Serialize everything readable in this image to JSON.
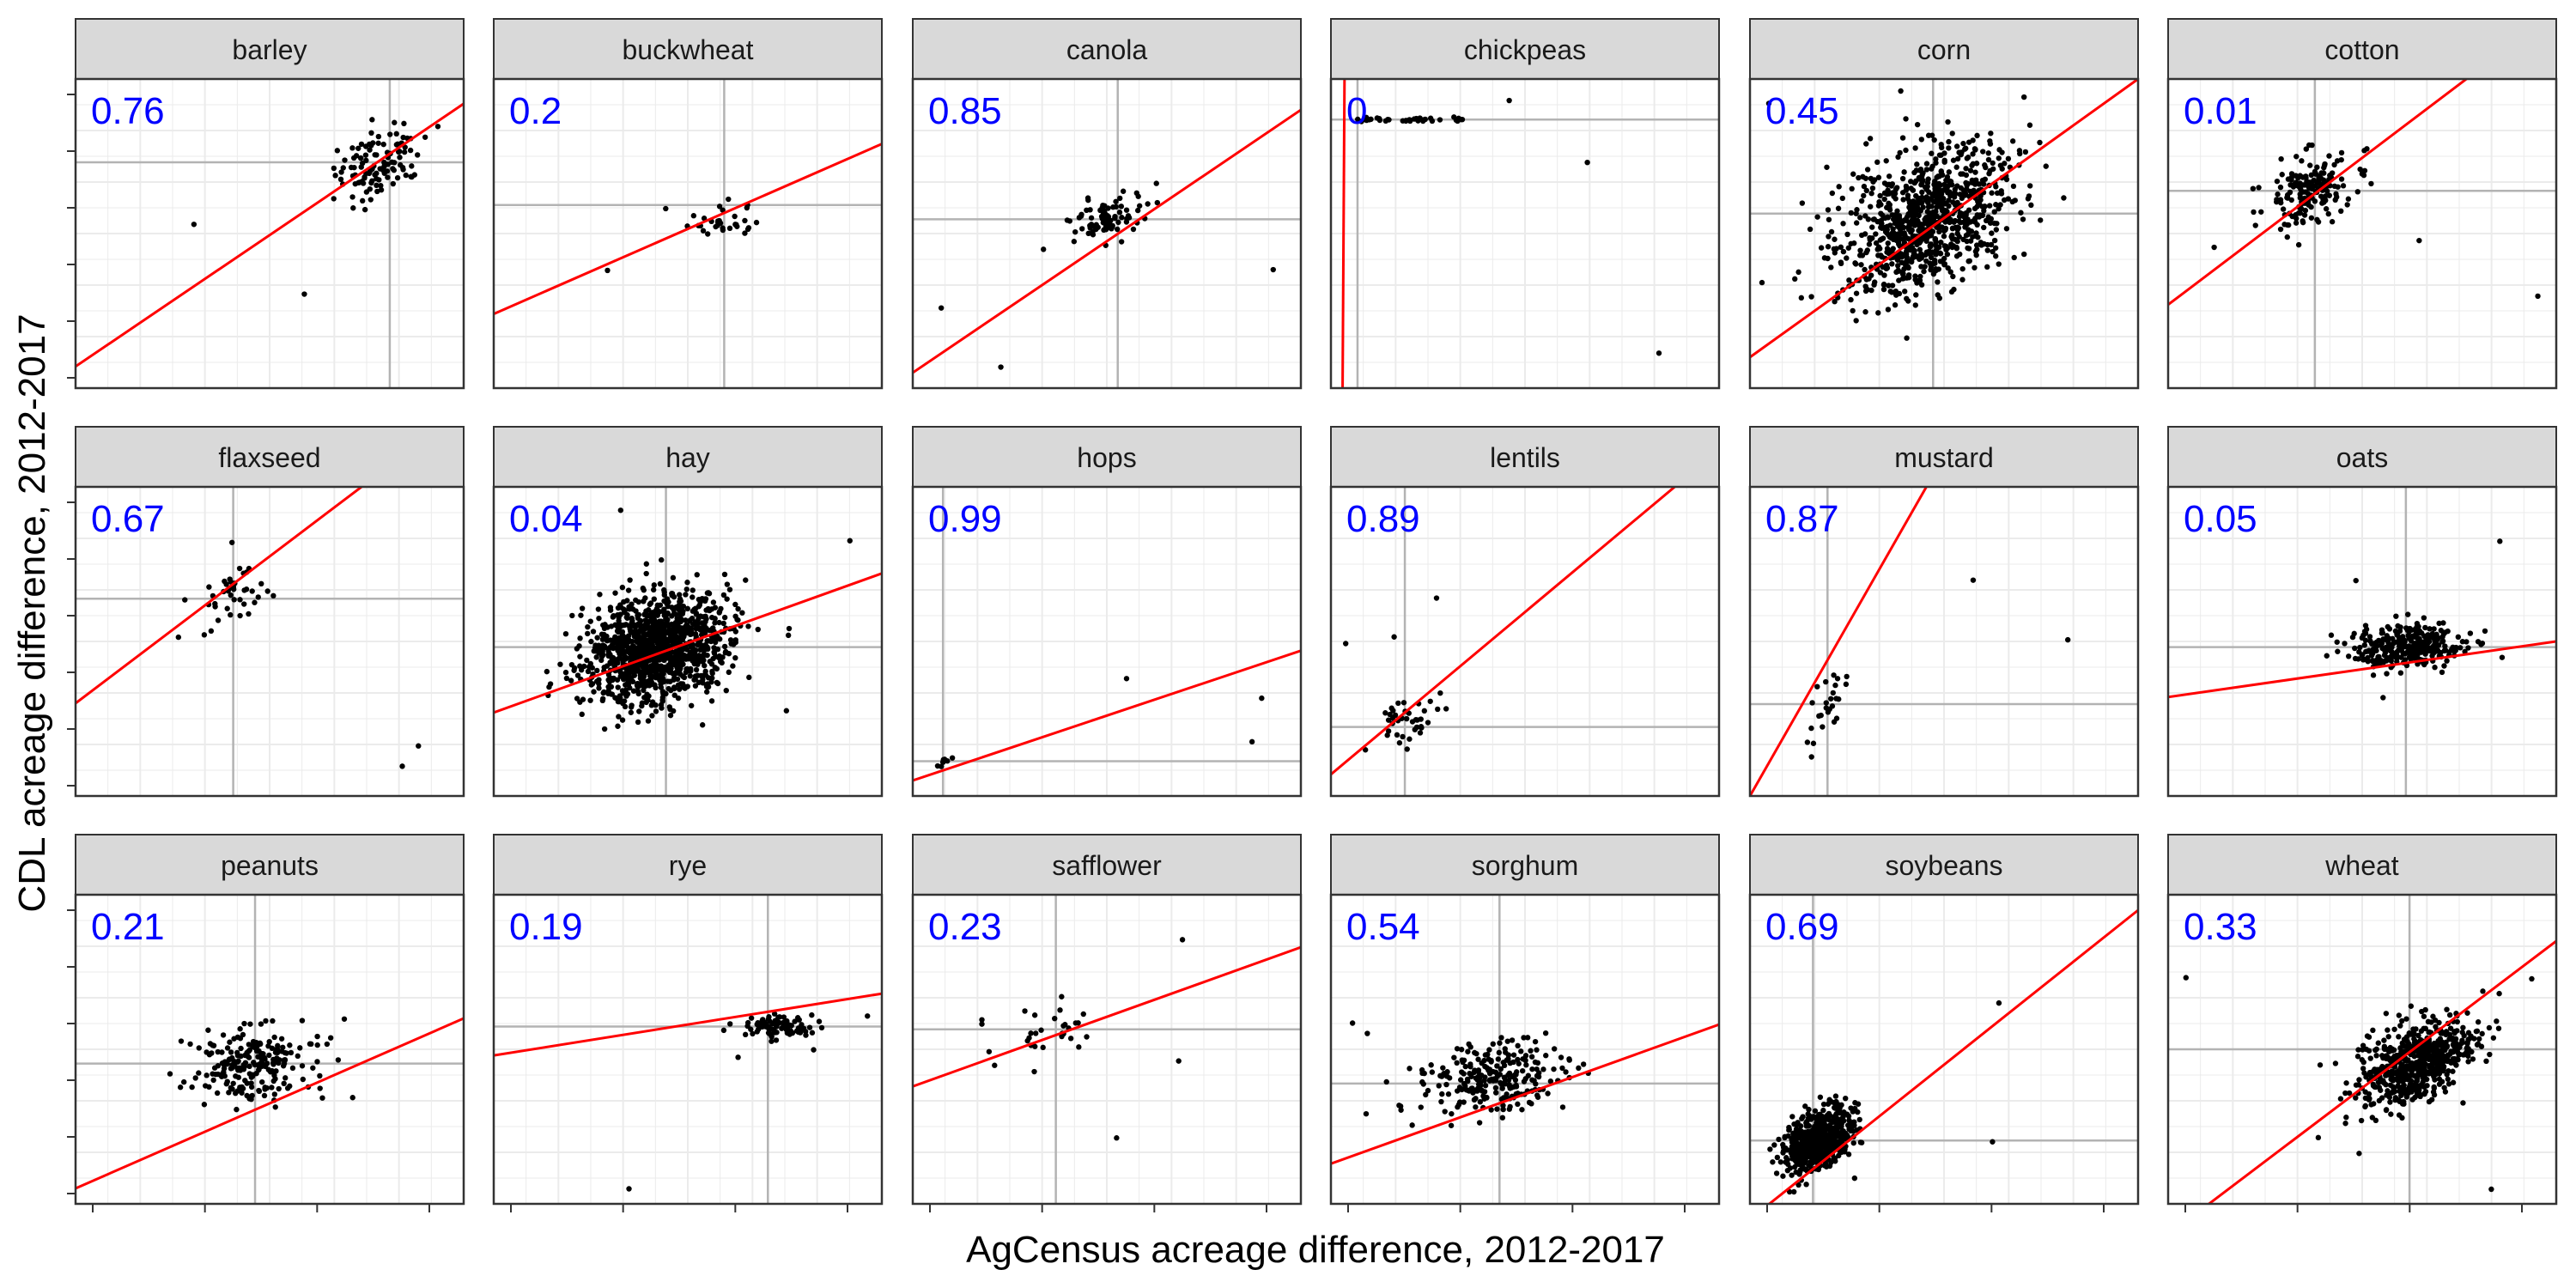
{
  "chart_data": {
    "type": "scatter",
    "facet_layout": "3 rows x 6 columns, free scales, axis tick labels not shown",
    "xlabel": "AgCensus acreage difference, 2012-2017",
    "ylabel": "CDL acreage difference, 2012-2017",
    "grid": true,
    "reference_lines": "x = 0 and y = 0 drawn in grey",
    "fit_line": "linear regression, drawn in red",
    "annotation_color": "#0000ff",
    "point_color": "#000000",
    "fit_color": "#ff0000",
    "panels": [
      {
        "name": "barley",
        "r2": "0.76"
      },
      {
        "name": "buckwheat",
        "r2": "0.2"
      },
      {
        "name": "canola",
        "r2": "0.85"
      },
      {
        "name": "chickpeas",
        "r2": "0"
      },
      {
        "name": "corn",
        "r2": "0.45"
      },
      {
        "name": "cotton",
        "r2": "0.01"
      },
      {
        "name": "flaxseed",
        "r2": "0.67"
      },
      {
        "name": "hay",
        "r2": "0.04"
      },
      {
        "name": "hops",
        "r2": "0.99"
      },
      {
        "name": "lentils",
        "r2": "0.89"
      },
      {
        "name": "mustard",
        "r2": "0.87"
      },
      {
        "name": "oats",
        "r2": "0.05"
      },
      {
        "name": "peanuts",
        "r2": "0.21"
      },
      {
        "name": "rye",
        "r2": "0.19"
      },
      {
        "name": "safflower",
        "r2": "0.23"
      },
      {
        "name": "sorghum",
        "r2": "0.54"
      },
      {
        "name": "soybeans",
        "r2": "0.69"
      },
      {
        "name": "wheat",
        "r2": "0.33"
      }
    ]
  }
}
